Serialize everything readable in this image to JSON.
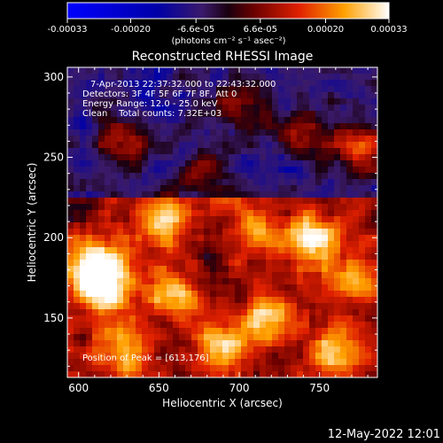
{
  "chart_data": {
    "type": "heatmap",
    "title": "Reconstructed RHESSI Image",
    "xlabel": "Heliocentric X (arcsec)",
    "ylabel": "Heliocentric Y (arcsec)",
    "xlim": [
      593,
      786
    ],
    "ylim": [
      113,
      306
    ],
    "xticks": [
      600,
      650,
      700,
      750
    ],
    "yticks": [
      150,
      200,
      250,
      300
    ],
    "colorbar": {
      "range": [
        -0.00033,
        0.00033
      ],
      "tick_labels": [
        "-0.00033",
        "-0.00020",
        "-6.6e-05",
        "6.6e-05",
        "0.00020",
        "0.00033"
      ],
      "unit_label": "(photons cm⁻² s⁻¹ asec⁻²)"
    },
    "annotations": {
      "time_range": "7-Apr-2013 22:37:32.000 to 22:43:32.000",
      "detectors": "Detectors: 3F 4F 5F 6F 7F 8F, Att 0",
      "energy_range": "Energy Range: 12.0 - 25.0 keV",
      "method_counts": "Clean    Total counts: 7.32E+03",
      "peak": "Position of Peak = [613,176]"
    },
    "peak": [
      613,
      176
    ],
    "sources": [
      {
        "x": 613,
        "y": 176,
        "amp": 1.0
      },
      {
        "x": 655,
        "y": 212,
        "amp": 0.55
      },
      {
        "x": 745,
        "y": 200,
        "amp": 0.7
      },
      {
        "x": 720,
        "y": 150,
        "amp": 0.55
      },
      {
        "x": 775,
        "y": 255,
        "amp": 0.6
      },
      {
        "x": 740,
        "y": 265,
        "amp": 0.4
      },
      {
        "x": 628,
        "y": 260,
        "amp": 0.45
      },
      {
        "x": 700,
        "y": 280,
        "amp": 0.35
      },
      {
        "x": 680,
        "y": 240,
        "amp": 0.35
      },
      {
        "x": 760,
        "y": 130,
        "amp": 0.5
      },
      {
        "x": 630,
        "y": 130,
        "amp": 0.45
      },
      {
        "x": 690,
        "y": 135,
        "amp": 0.5
      },
      {
        "x": 660,
        "y": 165,
        "amp": 0.45
      },
      {
        "x": 710,
        "y": 205,
        "amp": 0.4
      },
      {
        "x": 770,
        "y": 175,
        "amp": 0.4
      }
    ],
    "grid": false
  },
  "footer_date": "12-May-2022 12:01"
}
